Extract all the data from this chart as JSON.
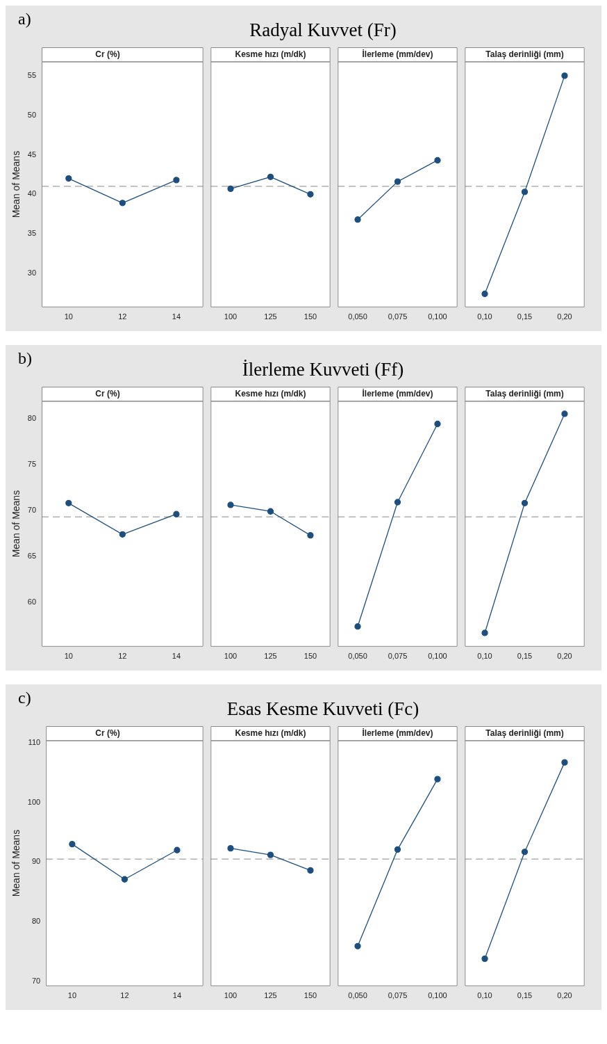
{
  "chart_data": [
    {
      "type": "line",
      "title": "Cr (%)",
      "annotations": [
        "a)",
        "Radyal Kuvvet (Fr)"
      ],
      "ylabel": "Mean of Means",
      "categories": [
        "10",
        "12",
        "14"
      ],
      "values": [
        42.0,
        38.9,
        41.8
      ],
      "color": "#1c4f80",
      "ylim": [
        25.7,
        56.8
      ],
      "yticks": [
        30,
        35,
        40,
        45,
        50,
        55
      ],
      "marker": "circle",
      "line_style": "solid",
      "ref_lines": [
        {
          "axis": "y",
          "value": 41.0,
          "color": "#a0a0a0",
          "line_style": "dashed"
        }
      ]
    },
    {
      "type": "line",
      "title": "Kesme hızı (m/dk)",
      "categories": [
        "100",
        "125",
        "150"
      ],
      "values": [
        40.7,
        42.2,
        40.0
      ],
      "color": "#1c4f80",
      "ylim": [
        25.7,
        56.8
      ],
      "tick_labels": "x",
      "marker": "circle",
      "line_style": "solid",
      "ref_lines": [
        {
          "axis": "y",
          "value": 41.0,
          "color": "#a0a0a0",
          "line_style": "dashed"
        }
      ]
    },
    {
      "type": "line",
      "title": "İlerleme (mm/dev)",
      "categories": [
        "0,050",
        "0,075",
        "0,100"
      ],
      "values": [
        36.8,
        41.6,
        44.3
      ],
      "color": "#1c4f80",
      "ylim": [
        25.7,
        56.8
      ],
      "tick_labels": "x",
      "marker": "circle",
      "line_style": "solid",
      "ref_lines": [
        {
          "axis": "y",
          "value": 41.0,
          "color": "#a0a0a0",
          "line_style": "dashed"
        }
      ]
    },
    {
      "type": "line",
      "title": "Talaş derinliği (mm)",
      "categories": [
        "0,10",
        "0,15",
        "0,20"
      ],
      "values": [
        27.4,
        40.3,
        55.0
      ],
      "color": "#1c4f80",
      "ylim": [
        25.7,
        56.8
      ],
      "tick_labels": "x",
      "marker": "circle",
      "line_style": "solid",
      "ref_lines": [
        {
          "axis": "y",
          "value": 41.0,
          "color": "#a0a0a0",
          "line_style": "dashed"
        }
      ]
    },
    {
      "type": "line",
      "title": "Cr (%)",
      "annotations": [
        "b)",
        "İlerleme Kuvveti (Ff)"
      ],
      "ylabel": "Mean of Means",
      "categories": [
        "10",
        "12",
        "14"
      ],
      "values": [
        70.8,
        67.4,
        69.6
      ],
      "color": "#1c4f80",
      "ylim": [
        55.2,
        81.9
      ],
      "yticks": [
        60,
        65,
        70,
        75,
        80
      ],
      "marker": "circle",
      "line_style": "solid",
      "ref_lines": [
        {
          "axis": "y",
          "value": 69.3,
          "color": "#a0a0a0",
          "line_style": "dashed"
        }
      ]
    },
    {
      "type": "line",
      "title": "Kesme hızı (m/dk)",
      "categories": [
        "100",
        "125",
        "150"
      ],
      "values": [
        70.6,
        69.9,
        67.3
      ],
      "color": "#1c4f80",
      "ylim": [
        55.2,
        81.9
      ],
      "tick_labels": "x",
      "marker": "circle",
      "line_style": "solid",
      "ref_lines": [
        {
          "axis": "y",
          "value": 69.3,
          "color": "#a0a0a0",
          "line_style": "dashed"
        }
      ]
    },
    {
      "type": "line",
      "title": "İlerleme (mm/dev)",
      "categories": [
        "0,050",
        "0,075",
        "0,100"
      ],
      "values": [
        57.4,
        70.9,
        79.4
      ],
      "color": "#1c4f80",
      "ylim": [
        55.2,
        81.9
      ],
      "tick_labels": "x",
      "marker": "circle",
      "line_style": "solid",
      "ref_lines": [
        {
          "axis": "y",
          "value": 69.3,
          "color": "#a0a0a0",
          "line_style": "dashed"
        }
      ]
    },
    {
      "type": "line",
      "title": "Talaş derinliği (mm)",
      "categories": [
        "0,10",
        "0,15",
        "0,20"
      ],
      "values": [
        56.7,
        70.8,
        80.5
      ],
      "color": "#1c4f80",
      "ylim": [
        55.2,
        81.9
      ],
      "tick_labels": "x",
      "marker": "circle",
      "line_style": "solid",
      "ref_lines": [
        {
          "axis": "y",
          "value": 69.3,
          "color": "#a0a0a0",
          "line_style": "dashed"
        }
      ]
    },
    {
      "type": "line",
      "title": "Cr (%)",
      "annotations": [
        "c)",
        "Esas Kesme Kuvveti (Fc)"
      ],
      "ylabel": "Mean of Means",
      "categories": [
        "10",
        "12",
        "14"
      ],
      "values": [
        93.0,
        87.1,
        92.0
      ],
      "color": "#1c4f80",
      "ylim": [
        69.2,
        110.4
      ],
      "yticks": [
        70,
        80,
        90,
        100,
        110
      ],
      "marker": "circle",
      "line_style": "solid",
      "ref_lines": [
        {
          "axis": "y",
          "value": 90.5,
          "color": "#a0a0a0",
          "line_style": "dashed"
        }
      ]
    },
    {
      "type": "line",
      "title": "Kesme hızı (m/dk)",
      "categories": [
        "100",
        "125",
        "150"
      ],
      "values": [
        92.3,
        91.2,
        88.6
      ],
      "color": "#1c4f80",
      "ylim": [
        69.2,
        110.4
      ],
      "tick_labels": "x",
      "marker": "circle",
      "line_style": "solid",
      "ref_lines": [
        {
          "axis": "y",
          "value": 90.5,
          "color": "#a0a0a0",
          "line_style": "dashed"
        }
      ]
    },
    {
      "type": "line",
      "title": "İlerleme (mm/dev)",
      "categories": [
        "0,050",
        "0,075",
        "0,100"
      ],
      "values": [
        75.9,
        92.1,
        103.9
      ],
      "color": "#1c4f80",
      "ylim": [
        69.2,
        110.4
      ],
      "tick_labels": "x",
      "marker": "circle",
      "line_style": "solid",
      "ref_lines": [
        {
          "axis": "y",
          "value": 90.5,
          "color": "#a0a0a0",
          "line_style": "dashed"
        }
      ]
    },
    {
      "type": "line",
      "title": "Talaş derinliği (mm)",
      "categories": [
        "0,10",
        "0,15",
        "0,20"
      ],
      "values": [
        73.8,
        91.7,
        106.7
      ],
      "color": "#1c4f80",
      "ylim": [
        69.2,
        110.4
      ],
      "tick_labels": "x",
      "marker": "circle",
      "line_style": "solid",
      "ref_lines": [
        {
          "axis": "y",
          "value": 90.5,
          "color": "#a0a0a0",
          "line_style": "dashed"
        }
      ]
    }
  ]
}
